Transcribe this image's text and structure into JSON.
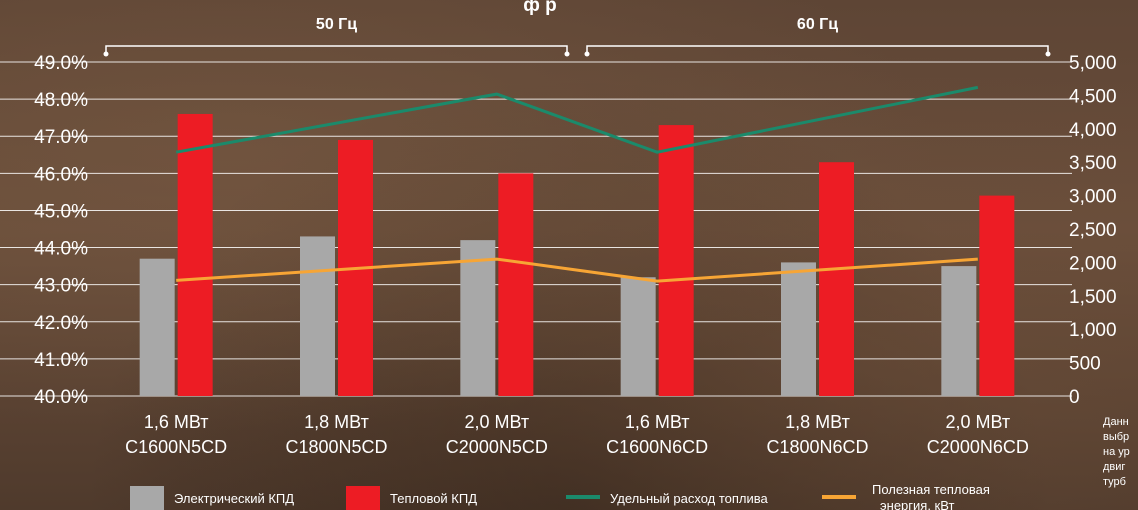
{
  "chart_data": {
    "type": "bar",
    "categories": [
      [
        "1,6 МВт",
        "C1600N5CD"
      ],
      [
        "1,8 МВт",
        "C1800N5CD"
      ],
      [
        "2,0 МВт",
        "C2000N5CD"
      ],
      [
        "1,6 МВт",
        "C1600N6CD"
      ],
      [
        "1,8 МВт",
        "C1800N6CD"
      ],
      [
        "2,0 МВт",
        "C2000N6CD"
      ]
    ],
    "groups": [
      {
        "label": "50 Гц",
        "from": 0,
        "to": 2
      },
      {
        "label": "60 Гц",
        "from": 3,
        "to": 5
      }
    ],
    "left_axis": {
      "ylim": [
        40,
        49
      ],
      "ticks": [
        "40.0%",
        "41.0%",
        "42.0%",
        "43.0%",
        "44.0%",
        "45.0%",
        "46.0%",
        "47.0%",
        "48.0%",
        "49.0%"
      ]
    },
    "right_axis": {
      "ylim": [
        0,
        5000
      ],
      "ticks": [
        "0",
        "500",
        "1,000",
        "1,500",
        "2,000",
        "2,500",
        "3,000",
        "3,500",
        "4,000",
        "4,500",
        "5,000"
      ]
    },
    "series": [
      {
        "name": "Электрический КПД",
        "type": "bar",
        "axis": "left",
        "color": "#a8a8a8",
        "values": [
          43.7,
          44.3,
          44.2,
          43.2,
          43.6,
          43.5
        ]
      },
      {
        "name": "Тепловой КПД",
        "type": "bar",
        "axis": "left",
        "color": "#ed1c24",
        "values": [
          47.6,
          46.9,
          46.0,
          47.3,
          46.3,
          45.4
        ]
      },
      {
        "name": "Удельный расход топлива",
        "type": "line",
        "axis": "right",
        "color": "#1b8a6b",
        "values": [
          3650,
          null,
          4520,
          3650,
          null,
          4620
        ]
      },
      {
        "name": "Полезная тепловая энергия, кВт",
        "type": "line",
        "axis": "right",
        "color": "#f7a535",
        "values": [
          1730,
          null,
          2050,
          1720,
          null,
          2050
        ]
      }
    ],
    "grid": true,
    "legend_position": "bottom"
  },
  "title_fragment": "ф  р  ",
  "note_fragment": [
    "Данн",
    "выбр",
    "на ур",
    "двиг",
    "турб"
  ]
}
